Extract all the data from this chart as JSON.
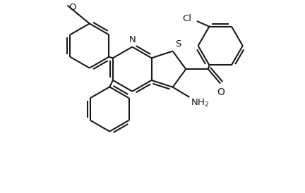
{
  "bg_color": "#ffffff",
  "line_color": "#1a1a1a",
  "line_width": 1.5,
  "doff": 0.055,
  "font_size": 9.5,
  "fig_width": 4.32,
  "fig_height": 2.74,
  "xlim": [
    -2.6,
    3.4
  ],
  "ylim": [
    -2.1,
    1.6
  ]
}
